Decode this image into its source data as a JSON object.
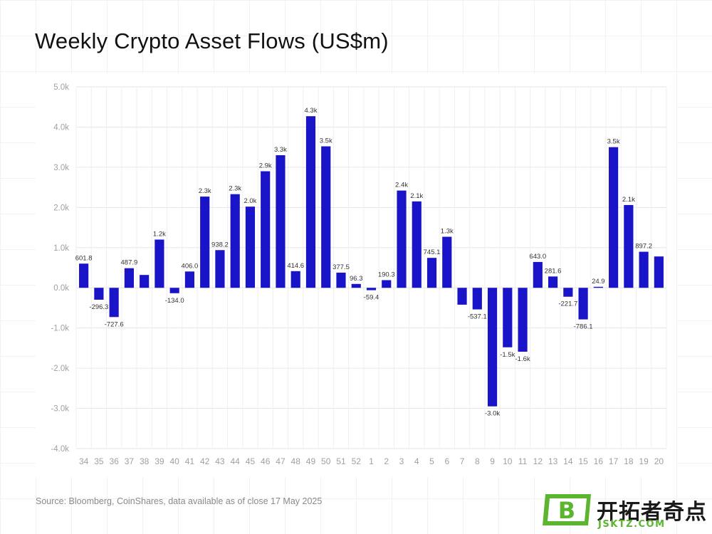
{
  "chart_data": {
    "type": "bar",
    "title": "Weekly Crypto Asset Flows (US$m)",
    "xlabel": "",
    "ylabel": "",
    "ylim": [
      -4000,
      5000
    ],
    "yticks": [
      5000,
      4000,
      3000,
      2000,
      1000,
      0,
      -1000,
      -2000,
      -3000,
      -4000
    ],
    "ytick_labels": [
      "5.0k",
      "4.0k",
      "3.0k",
      "2.0k",
      "1.0k",
      "0.0k",
      "-1.0k",
      "-2.0k",
      "-3.0k",
      "-4.0k"
    ],
    "grid": true,
    "bar_color": "#1a14c8",
    "categories": [
      "34",
      "35",
      "36",
      "37",
      "38",
      "39",
      "40",
      "41",
      "42",
      "43",
      "44",
      "45",
      "46",
      "47",
      "48",
      "49",
      "50",
      "51",
      "52",
      "1",
      "2",
      "3",
      "4",
      "5",
      "6",
      "7",
      "8",
      "9",
      "10",
      "11",
      "12",
      "13",
      "14",
      "15",
      "16",
      "17",
      "18",
      "19",
      "20"
    ],
    "values": [
      601.8,
      -296.3,
      -727.6,
      487.9,
      320,
      1200,
      -134.0,
      406.0,
      2270,
      938.2,
      2330,
      2020,
      2900,
      3300,
      414.6,
      4270,
      3520,
      377.5,
      96.3,
      -59.4,
      190.3,
      2420,
      2150,
      745.1,
      1270,
      -420,
      -537.1,
      -2950,
      -1480,
      -1590,
      643.0,
      281.6,
      -221.7,
      -786.1,
      24.9,
      3500,
      2060,
      897.2,
      780
    ],
    "data_labels": [
      "601.8",
      "-296.3",
      "-727.6",
      "487.9",
      "",
      "1.2k",
      "-134.0",
      "406.0",
      "2.3k",
      "938.2",
      "2.3k",
      "2.0k",
      "2.9k",
      "3.3k",
      "414.6",
      "4.3k",
      "3.5k",
      "377.5",
      "96.3",
      "-59.4",
      "190.3",
      "2.4k",
      "2.1k",
      "745.1",
      "1.3k",
      "",
      "-537.1",
      "-3.0k",
      "-1.5k",
      "-1.6k",
      "643.0",
      "281.6",
      "-221.7",
      "-786.1",
      "24.9",
      "3.5k",
      "2.1k",
      "897.2",
      ""
    ]
  },
  "source_note": "Source: Bloomberg, CoinShares, data available as of close 17 May 2025",
  "watermark": {
    "brand_text": "开拓者奇点",
    "domain_text": "JSKTZ.COM",
    "logo_letter": "B",
    "logo_color": "#5bb52f"
  }
}
